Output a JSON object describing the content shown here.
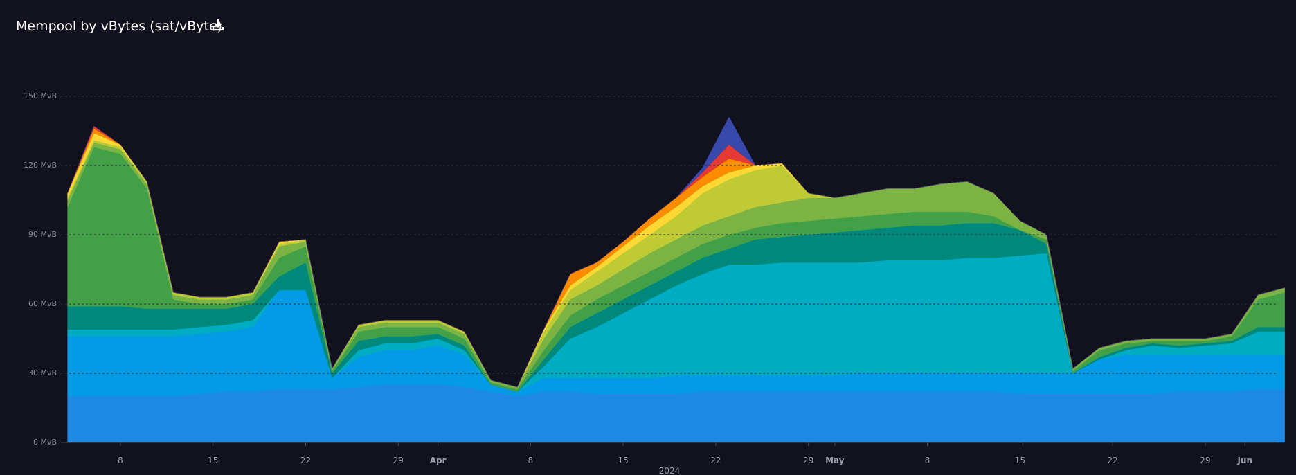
{
  "chart_data": {
    "type": "stacked-area",
    "title": "Mempool by vBytes (sat/vByte)",
    "xlabel": "2024",
    "x": [
      "2024-03-04",
      "2024-03-06",
      "2024-03-08",
      "2024-03-10",
      "2024-03-12",
      "2024-03-14",
      "2024-03-16",
      "2024-03-18",
      "2024-03-20",
      "2024-03-22",
      "2024-03-24",
      "2024-03-26",
      "2024-03-28",
      "2024-03-30",
      "2024-04-01",
      "2024-04-03",
      "2024-04-05",
      "2024-04-07",
      "2024-04-09",
      "2024-04-11",
      "2024-04-13",
      "2024-04-15",
      "2024-04-17",
      "2024-04-19",
      "2024-04-21",
      "2024-04-23",
      "2024-04-25",
      "2024-04-27",
      "2024-04-29",
      "2024-05-01",
      "2024-05-03",
      "2024-05-05",
      "2024-05-07",
      "2024-05-09",
      "2024-05-11",
      "2024-05-13",
      "2024-05-15",
      "2024-05-17",
      "2024-05-19",
      "2024-05-21",
      "2024-05-23",
      "2024-05-25",
      "2024-05-27",
      "2024-05-29",
      "2024-05-31",
      "2024-06-02",
      "2024-06-04"
    ],
    "xlim": [
      "2024-03-03T12:00",
      "2024-06-03T12:00"
    ],
    "xticks": [
      {
        "value": "2024-03-08",
        "label": "8"
      },
      {
        "value": "2024-03-15",
        "label": "15"
      },
      {
        "value": "2024-03-22",
        "label": "22"
      },
      {
        "value": "2024-03-29",
        "label": "29"
      },
      {
        "value": "2024-04-01",
        "label": "Apr"
      },
      {
        "value": "2024-04-08",
        "label": "8"
      },
      {
        "value": "2024-04-15",
        "label": "15"
      },
      {
        "value": "2024-04-22",
        "label": "22"
      },
      {
        "value": "2024-04-29",
        "label": "29"
      },
      {
        "value": "2024-05-01",
        "label": "May"
      },
      {
        "value": "2024-05-08",
        "label": "8"
      },
      {
        "value": "2024-05-15",
        "label": "15"
      },
      {
        "value": "2024-05-22",
        "label": "22"
      },
      {
        "value": "2024-05-29",
        "label": "29"
      },
      {
        "value": "2024-06-01",
        "label": "Jun"
      }
    ],
    "ylim": [
      0,
      150
    ],
    "yticks": [
      {
        "value": 0,
        "label": "0 MvB"
      },
      {
        "value": 30,
        "label": "30 MvB"
      },
      {
        "value": 60,
        "label": "60 MvB"
      },
      {
        "value": 90,
        "label": "90 MvB"
      },
      {
        "value": 120,
        "label": "120 MvB"
      },
      {
        "value": 150,
        "label": "150 MvB"
      }
    ],
    "grid": true,
    "series": [
      {
        "color": "#1e88e5",
        "values": [
          20,
          20,
          20,
          20,
          20,
          21,
          22,
          22,
          23,
          23,
          23,
          24,
          25,
          25,
          25,
          24,
          22,
          20,
          22,
          22,
          21,
          21,
          21,
          21,
          22,
          22,
          22,
          22,
          22,
          22,
          22,
          22,
          22,
          22,
          22,
          22,
          21,
          21,
          21,
          21,
          21,
          21,
          22,
          22,
          22,
          23,
          23
        ]
      },
      {
        "color": "#039be5",
        "values": [
          26,
          26,
          26,
          26,
          26,
          26,
          26,
          28,
          43,
          43,
          5,
          13,
          15,
          15,
          17,
          14,
          3,
          2,
          6,
          6,
          7,
          7,
          7,
          8,
          7,
          7,
          7,
          7,
          7,
          7,
          8,
          8,
          8,
          8,
          8,
          8,
          9,
          9,
          9,
          15,
          17,
          17,
          16,
          16,
          16,
          15,
          15
        ]
      },
      {
        "color": "#00acc1",
        "values": [
          3,
          3,
          3,
          3,
          3,
          3,
          3,
          3,
          0,
          0,
          0,
          3,
          3,
          3,
          3,
          2,
          0,
          0,
          5,
          17,
          22,
          28,
          34,
          39,
          44,
          48,
          48,
          49,
          49,
          49,
          48,
          49,
          49,
          49,
          50,
          50,
          51,
          52,
          0,
          0,
          2,
          4,
          3,
          4,
          5,
          10,
          10
        ]
      },
      {
        "color": "#00897b",
        "values": [
          10,
          10,
          10,
          9,
          9,
          8,
          7,
          7,
          6,
          12,
          2,
          4,
          3,
          3,
          2,
          2,
          0,
          0,
          3,
          5,
          6,
          6,
          6,
          6,
          7,
          7,
          11,
          11,
          12,
          13,
          14,
          14,
          15,
          15,
          15,
          15,
          11,
          4,
          0,
          1,
          1,
          1,
          1,
          1,
          1,
          2,
          2
        ]
      },
      {
        "color": "#43a047",
        "values": [
          43,
          69,
          66,
          52,
          4,
          2,
          2,
          2,
          8,
          7,
          1,
          4,
          4,
          4,
          3,
          3,
          1,
          1,
          4,
          5,
          6,
          6,
          6,
          6,
          6,
          6,
          5,
          6,
          6,
          6,
          6,
          6,
          6,
          6,
          5,
          3,
          0,
          2,
          1,
          3,
          2,
          1,
          2,
          1,
          2,
          12,
          15
        ]
      },
      {
        "color": "#7cb342",
        "values": [
          3,
          2,
          2,
          2,
          2,
          2,
          2,
          2,
          5,
          2,
          1,
          2,
          2,
          2,
          2,
          2,
          1,
          1,
          5,
          7,
          6,
          7,
          8,
          8,
          8,
          8,
          9,
          9,
          10,
          9,
          10,
          11,
          10,
          12,
          13,
          10,
          4,
          2,
          1,
          1,
          1,
          1,
          1,
          1,
          1,
          2,
          2
        ]
      },
      {
        "color": "#c0ca33",
        "values": [
          1,
          1,
          1,
          1,
          1,
          1,
          1,
          1,
          1,
          1,
          0,
          1,
          1,
          1,
          1,
          1,
          0,
          0,
          3,
          4,
          6,
          7,
          8,
          10,
          14,
          16,
          16,
          16,
          2,
          0,
          0,
          0,
          0,
          0,
          0,
          0,
          0,
          0,
          0,
          0,
          0,
          0,
          0,
          0,
          0,
          0,
          0
        ]
      },
      {
        "color": "#fdd835",
        "values": [
          2,
          3,
          1,
          0,
          0,
          0,
          0,
          0,
          1,
          0,
          0,
          0,
          0,
          0,
          0,
          0,
          0,
          0,
          1,
          2,
          2,
          3,
          4,
          4,
          3,
          3,
          2,
          1,
          0,
          0,
          0,
          0,
          0,
          0,
          0,
          0,
          0,
          0,
          0,
          0,
          0,
          0,
          0,
          0,
          0,
          0,
          0
        ]
      },
      {
        "color": "#fb8c00",
        "values": [
          0,
          2,
          0,
          0,
          0,
          0,
          0,
          0,
          0,
          0,
          0,
          0,
          0,
          0,
          0,
          0,
          0,
          0,
          0,
          5,
          2,
          2,
          3,
          4,
          4,
          6,
          0,
          0,
          0,
          0,
          0,
          0,
          0,
          0,
          0,
          0,
          0,
          0,
          0,
          0,
          0,
          0,
          0,
          0,
          0,
          0,
          0
        ]
      },
      {
        "color": "#e53935",
        "values": [
          0,
          1,
          0,
          0,
          0,
          0,
          0,
          0,
          0,
          0,
          0,
          0,
          0,
          0,
          0,
          0,
          0,
          0,
          0,
          0,
          0,
          0,
          0,
          0,
          2,
          6,
          0,
          0,
          0,
          0,
          0,
          0,
          0,
          0,
          0,
          0,
          0,
          0,
          0,
          0,
          0,
          0,
          0,
          0,
          0,
          0,
          0
        ]
      },
      {
        "color": "#3949ab",
        "values": [
          0,
          0,
          0,
          0,
          0,
          0,
          0,
          0,
          0,
          0,
          0,
          0,
          0,
          0,
          0,
          0,
          0,
          0,
          0,
          0,
          0,
          0,
          0,
          0,
          2,
          12,
          0,
          0,
          0,
          0,
          0,
          0,
          0,
          0,
          0,
          0,
          0,
          0,
          0,
          0,
          0,
          0,
          0,
          0,
          0,
          0,
          0
        ]
      }
    ]
  }
}
